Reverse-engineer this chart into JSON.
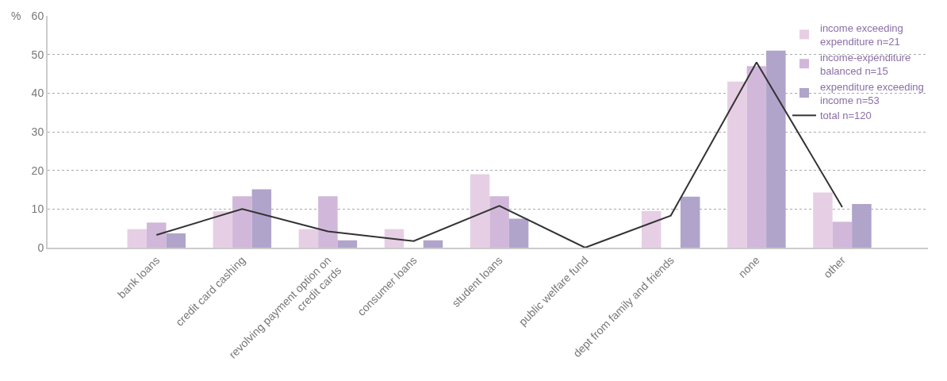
{
  "chart_data": {
    "type": "bar",
    "ylabel": "%",
    "categories": [
      "bank loans",
      "credit card cashing",
      "revolving payment option on credit cards",
      "consumer loans",
      "student loans",
      "public welfare fund",
      "dept from family and friends",
      "none",
      "other"
    ],
    "series": [
      {
        "name": "income exceeding expenditure n=21",
        "color": "#e6cfe4",
        "values": [
          4.8,
          9.4,
          4.8,
          4.8,
          19,
          0,
          9.5,
          43,
          14.3
        ]
      },
      {
        "name": "income-expenditure balanced n=15",
        "color": "#d1b8da",
        "values": [
          6.5,
          13.3,
          13.3,
          0,
          13.3,
          0,
          0,
          47,
          6.7
        ]
      },
      {
        "name": "expenditure exceeding income n=53",
        "color": "#b0a4cb",
        "values": [
          3.7,
          15.1,
          1.9,
          1.9,
          7.5,
          0,
          13.2,
          51,
          11.3
        ]
      },
      {
        "name": "total n=120",
        "type": "line",
        "color": "#333333",
        "values": [
          3.3,
          10.0,
          4.2,
          1.7,
          10.8,
          0,
          8.3,
          48,
          10.5
        ]
      }
    ],
    "ylim": [
      0,
      60
    ],
    "yticks": [
      0,
      10,
      20,
      30,
      40,
      50,
      60
    ],
    "grid": "y",
    "legend": "top right"
  }
}
